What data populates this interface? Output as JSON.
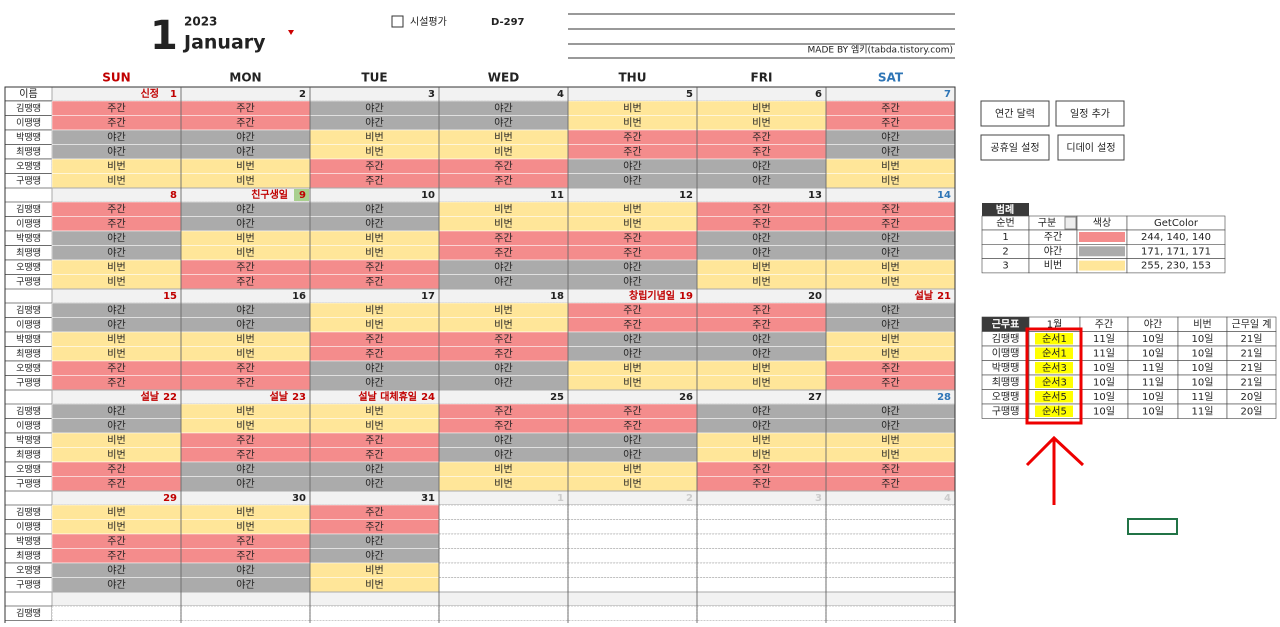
{
  "header": {
    "month": "1",
    "year": "2023",
    "month_name": "January",
    "event": "시설평가",
    "dday": "D-297",
    "credit": "MADE BY 엠키(tabda.tistory.com)"
  },
  "buttons": [
    "연간 달력",
    "일정 추가",
    "공휴일 설정",
    "디데이 설정"
  ],
  "calendar": {
    "name_header": "이름",
    "weekdays": [
      "SUN",
      "MON",
      "TUE",
      "WED",
      "THU",
      "FRI",
      "SAT"
    ],
    "names": [
      "김땡땡",
      "이땡땡",
      "박땡땡",
      "최땡땡",
      "오땡땡",
      "구땡땡"
    ],
    "weeks": [
      {
        "days": [
          {
            "date": 1,
            "holiday": "신정",
            "shifts": [
              "주간",
              "주간",
              "야간",
              "야간",
              "비번",
              "비번"
            ]
          },
          {
            "date": 2,
            "shifts": [
              "주간",
              "주간",
              "야간",
              "야간",
              "비번",
              "비번"
            ]
          },
          {
            "date": 3,
            "shifts": [
              "야간",
              "야간",
              "비번",
              "비번",
              "주간",
              "주간"
            ]
          },
          {
            "date": 4,
            "shifts": [
              "야간",
              "야간",
              "비번",
              "비번",
              "주간",
              "주간"
            ]
          },
          {
            "date": 5,
            "shifts": [
              "비번",
              "비번",
              "주간",
              "주간",
              "야간",
              "야간"
            ]
          },
          {
            "date": 6,
            "shifts": [
              "비번",
              "비번",
              "주간",
              "주간",
              "야간",
              "야간"
            ]
          },
          {
            "date": 7,
            "shifts": [
              "주간",
              "주간",
              "야간",
              "야간",
              "비번",
              "비번"
            ]
          }
        ]
      },
      {
        "days": [
          {
            "date": 8,
            "shifts": [
              "주간",
              "주간",
              "야간",
              "야간",
              "비번",
              "비번"
            ]
          },
          {
            "date": 9,
            "holiday": "친구생일",
            "shifts": [
              "야간",
              "야간",
              "비번",
              "비번",
              "주간",
              "주간"
            ]
          },
          {
            "date": 10,
            "shifts": [
              "야간",
              "야간",
              "비번",
              "비번",
              "주간",
              "주간"
            ]
          },
          {
            "date": 11,
            "shifts": [
              "비번",
              "비번",
              "주간",
              "주간",
              "야간",
              "야간"
            ]
          },
          {
            "date": 12,
            "shifts": [
              "비번",
              "비번",
              "주간",
              "주간",
              "야간",
              "야간"
            ]
          },
          {
            "date": 13,
            "shifts": [
              "주간",
              "주간",
              "야간",
              "야간",
              "비번",
              "비번"
            ]
          },
          {
            "date": 14,
            "shifts": [
              "주간",
              "주간",
              "야간",
              "야간",
              "비번",
              "비번"
            ]
          }
        ]
      },
      {
        "days": [
          {
            "date": 15,
            "shifts": [
              "야간",
              "야간",
              "비번",
              "비번",
              "주간",
              "주간"
            ]
          },
          {
            "date": 16,
            "shifts": [
              "야간",
              "야간",
              "비번",
              "비번",
              "주간",
              "주간"
            ]
          },
          {
            "date": 17,
            "shifts": [
              "비번",
              "비번",
              "주간",
              "주간",
              "야간",
              "야간"
            ]
          },
          {
            "date": 18,
            "shifts": [
              "비번",
              "비번",
              "주간",
              "주간",
              "야간",
              "야간"
            ]
          },
          {
            "date": 19,
            "holiday": "창립기념일",
            "shifts": [
              "주간",
              "주간",
              "야간",
              "야간",
              "비번",
              "비번"
            ]
          },
          {
            "date": 20,
            "shifts": [
              "주간",
              "주간",
              "야간",
              "야간",
              "비번",
              "비번"
            ]
          },
          {
            "date": 21,
            "holiday": "설날",
            "shifts": [
              "야간",
              "야간",
              "비번",
              "비번",
              "주간",
              "주간"
            ]
          }
        ]
      },
      {
        "days": [
          {
            "date": 22,
            "holiday": "설날",
            "shifts": [
              "야간",
              "야간",
              "비번",
              "비번",
              "주간",
              "주간"
            ]
          },
          {
            "date": 23,
            "holiday": "설날",
            "shifts": [
              "비번",
              "비번",
              "주간",
              "주간",
              "야간",
              "야간"
            ]
          },
          {
            "date": 24,
            "holiday": "설날 대체휴일",
            "shifts": [
              "비번",
              "비번",
              "주간",
              "주간",
              "야간",
              "야간"
            ]
          },
          {
            "date": 25,
            "shifts": [
              "주간",
              "주간",
              "야간",
              "야간",
              "비번",
              "비번"
            ]
          },
          {
            "date": 26,
            "shifts": [
              "주간",
              "주간",
              "야간",
              "야간",
              "비번",
              "비번"
            ]
          },
          {
            "date": 27,
            "shifts": [
              "야간",
              "야간",
              "비번",
              "비번",
              "주간",
              "주간"
            ]
          },
          {
            "date": 28,
            "shifts": [
              "야간",
              "야간",
              "비번",
              "비번",
              "주간",
              "주간"
            ]
          }
        ]
      },
      {
        "days": [
          {
            "date": 29,
            "shifts": [
              "비번",
              "비번",
              "주간",
              "주간",
              "야간",
              "야간"
            ]
          },
          {
            "date": 30,
            "shifts": [
              "비번",
              "비번",
              "주간",
              "주간",
              "야간",
              "야간"
            ]
          },
          {
            "date": 31,
            "shifts": [
              "주간",
              "주간",
              "야간",
              "야간",
              "비번",
              "비번"
            ]
          },
          {
            "date": 1,
            "other_month": true,
            "shifts": []
          },
          {
            "date": 2,
            "other_month": true,
            "shifts": []
          },
          {
            "date": 3,
            "other_month": true,
            "shifts": []
          },
          {
            "date": 4,
            "other_month": true,
            "shifts": []
          }
        ]
      }
    ]
  },
  "legend": {
    "title": "범례",
    "headers": [
      "순번",
      "구분",
      "색상",
      "GetColor"
    ],
    "rows": [
      {
        "no": 1,
        "type": "주간",
        "color": "#F48C8C",
        "getcolor": "244, 140, 140"
      },
      {
        "no": 2,
        "type": "야간",
        "color": "#ABABAB",
        "getcolor": "171, 171, 171"
      },
      {
        "no": 3,
        "type": "비번",
        "color": "#FFE699",
        "getcolor": "255, 230, 153"
      }
    ]
  },
  "roster": {
    "headers": [
      "근무표",
      "1월",
      "주간",
      "야간",
      "비번",
      "근무일 계"
    ],
    "rows": [
      [
        "김땡땡",
        "순서1",
        "11일",
        "10일",
        "10일",
        "21일"
      ],
      [
        "이땡땡",
        "순서1",
        "11일",
        "10일",
        "10일",
        "21일"
      ],
      [
        "박땡땡",
        "순서3",
        "10일",
        "11일",
        "10일",
        "21일"
      ],
      [
        "최땡땡",
        "순서3",
        "10일",
        "11일",
        "10일",
        "21일"
      ],
      [
        "오땡땡",
        "순서5",
        "10일",
        "10일",
        "11일",
        "20일"
      ],
      [
        "구땡땡",
        "순서5",
        "10일",
        "10일",
        "11일",
        "20일"
      ]
    ]
  }
}
